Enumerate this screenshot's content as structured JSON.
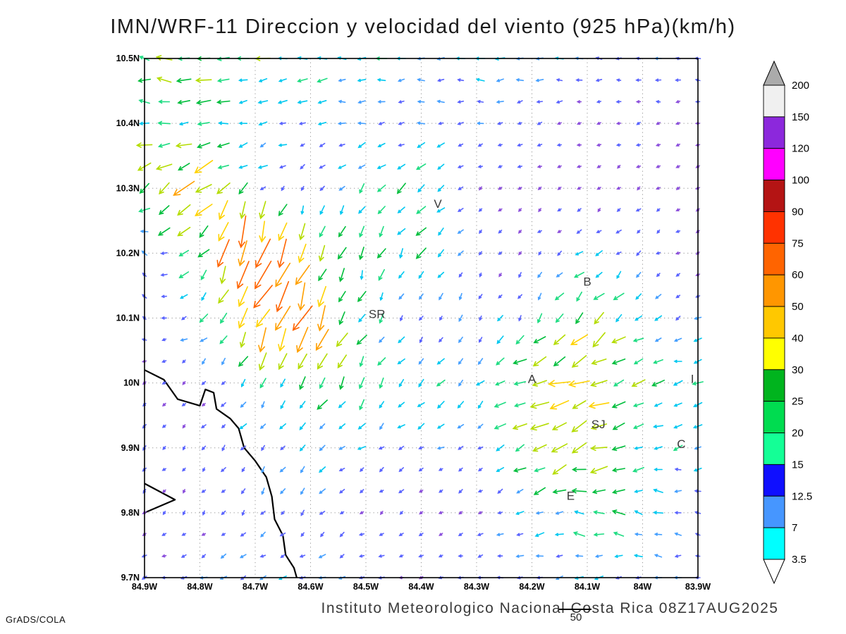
{
  "title": "IMN/WRF-11 Direccion y velocidad del viento (925 hPa)(km/h)",
  "footer": {
    "caption": "Instituto Meteorologico Nacional Costa Rica 08Z17AUG2025",
    "credit": "GrADS/COLA",
    "reference_value": "50"
  },
  "chart_data": {
    "type": "vector-field",
    "title": "IMN/WRF-11 Direccion y velocidad del viento (925 hPa)(km/h)",
    "variable": "Direccion y velocidad del viento",
    "level": "925 hPa",
    "units": "km/h",
    "valid_time": "08Z17AUG2025",
    "model": "IMN/WRF-11",
    "lon_range": [
      -84.9,
      -83.9
    ],
    "lat_range": [
      9.7,
      10.5
    ],
    "lon_ticks": [
      "84.9W",
      "84.8W",
      "84.7W",
      "84.6W",
      "84.5W",
      "84.4W",
      "84.3W",
      "84.2W",
      "84.1W",
      "84W",
      "83.9W"
    ],
    "lat_ticks": [
      "10.5N",
      "10.4N",
      "10.3N",
      "10.2N",
      "10.1N",
      "10N",
      "9.9N",
      "9.8N",
      "9.7N"
    ],
    "grid": "dotted",
    "reference_speed": 50,
    "speed_levels": [
      3.5,
      7,
      12.5,
      15,
      20,
      25,
      30,
      40,
      50,
      60,
      75,
      90,
      100,
      120,
      150,
      200
    ],
    "colorbar_colors": [
      "#00FFFF",
      "#4696FF",
      "#0F0FFF",
      "#14FF96",
      "#00DC50",
      "#00B41E",
      "#FFFF00",
      "#FFC800",
      "#FF9600",
      "#FF6400",
      "#FF3200",
      "#B41414",
      "#FF00FF",
      "#8C28DC",
      "#F0F0F0"
    ],
    "colorbar_under": "#FFFFFF",
    "colorbar_over": "#ABABAB",
    "arrow_colors": [
      "#A05AE6",
      "#8C50DC",
      "#5A64FF",
      "#46A0FF",
      "#00C8F0",
      "#1EDC82",
      "#00BE3C",
      "#B4DC00",
      "#FFD200",
      "#FFA000",
      "#FF6400",
      "#FF2800",
      "#E60000",
      "#FF0096",
      "#FF00FF",
      "#9632C8",
      "#969696"
    ],
    "stations": [
      {
        "label": "V",
        "lon": -84.37,
        "lat": 10.27
      },
      {
        "label": "B",
        "lon": -84.1,
        "lat": 10.15
      },
      {
        "label": "SR",
        "lon": -84.48,
        "lat": 10.1
      },
      {
        "label": "A",
        "lon": -84.2,
        "lat": 10.0
      },
      {
        "label": "I",
        "lon": -83.91,
        "lat": 10.0
      },
      {
        "label": "SJ",
        "lon": -84.08,
        "lat": 9.93
      },
      {
        "label": "C",
        "lon": -83.93,
        "lat": 9.9
      },
      {
        "label": "E",
        "lon": -84.13,
        "lat": 9.82
      }
    ],
    "coastline": [
      [
        [
          -84.9,
          10.02
        ],
        [
          -84.865,
          10.005
        ],
        [
          -84.84,
          9.975
        ],
        [
          -84.8,
          9.965
        ],
        [
          -84.79,
          9.99
        ],
        [
          -84.775,
          9.985
        ],
        [
          -84.77,
          9.96
        ],
        [
          -84.745,
          9.945
        ],
        [
          -84.73,
          9.93
        ],
        [
          -84.72,
          9.9
        ],
        [
          -84.7,
          9.88
        ],
        [
          -84.68,
          9.855
        ],
        [
          -84.67,
          9.825
        ],
        [
          -84.665,
          9.79
        ],
        [
          -84.65,
          9.765
        ],
        [
          -84.645,
          9.735
        ],
        [
          -84.63,
          9.715
        ],
        [
          -84.625,
          9.7
        ]
      ],
      [
        [
          -84.9,
          9.845
        ],
        [
          -84.845,
          9.82
        ],
        [
          -84.9,
          9.8
        ]
      ]
    ],
    "wind_grid": {
      "lons": [
        -84.9,
        -84.8,
        -84.7,
        -84.6,
        -84.5,
        -84.4,
        -84.3,
        -84.2,
        -84.1,
        -84.0,
        -83.9
      ],
      "lats": [
        10.5,
        10.4,
        10.3,
        10.2,
        10.1,
        10.0,
        9.9,
        9.8,
        9.7
      ],
      "u": [
        [
          -28,
          -30,
          -24,
          -20,
          -18,
          -16,
          -15,
          -14,
          -12,
          -10,
          -9
        ],
        [
          -24,
          -20,
          -16,
          -12,
          -13,
          -12,
          -10,
          -8,
          -7,
          -6,
          -5
        ],
        [
          -30,
          -38,
          -12,
          -6,
          -14,
          -18,
          -6,
          -4,
          -3,
          -5,
          -4
        ],
        [
          -10,
          -22,
          -18,
          -10,
          -8,
          -14,
          -5,
          -4,
          -11,
          -8,
          -4
        ],
        [
          -8,
          -12,
          -28,
          -20,
          -10,
          -5,
          -6,
          -8,
          -24,
          -10,
          -11
        ],
        [
          -5,
          -6,
          -10,
          -14,
          -10,
          -14,
          -10,
          -34,
          -38,
          -22,
          -19
        ],
        [
          -6,
          -5,
          -8,
          -10,
          -12,
          -10,
          -8,
          -28,
          -34,
          -18,
          -14
        ],
        [
          -5,
          -4,
          -6,
          -8,
          -6,
          -5,
          -6,
          -14,
          -24,
          -19,
          -10
        ],
        [
          -8,
          -10,
          -12,
          -12,
          -10,
          -8,
          -10,
          -12,
          -14,
          -12,
          -10
        ]
      ],
      "v": [
        [
          2,
          3,
          0,
          0,
          -2,
          0,
          0,
          0,
          0,
          1,
          0
        ],
        [
          0,
          -3,
          -4,
          -3,
          0,
          -2,
          -2,
          -2,
          -1,
          -2,
          -1
        ],
        [
          -20,
          -28,
          -10,
          -6,
          -16,
          -12,
          -4,
          -3,
          -3,
          -4,
          -2
        ],
        [
          6,
          -18,
          -80,
          -32,
          -22,
          -18,
          -6,
          -4,
          -9,
          -6,
          -3
        ],
        [
          4,
          -10,
          -48,
          -52,
          -18,
          -8,
          -10,
          -12,
          -28,
          -10,
          -4
        ],
        [
          -3,
          -5,
          -14,
          -24,
          -17,
          -14,
          -12,
          -10,
          -14,
          -5,
          -3
        ],
        [
          -6,
          -6,
          -10,
          -11,
          -8,
          -5,
          -6,
          -14,
          -12,
          -8,
          -5
        ],
        [
          -5,
          -5,
          -8,
          -8,
          -5,
          -4,
          -3,
          -5,
          4,
          7,
          2
        ],
        [
          -3,
          -4,
          -5,
          -4,
          -3,
          -3,
          -2,
          -3,
          -2,
          -2,
          -2
        ]
      ]
    }
  }
}
